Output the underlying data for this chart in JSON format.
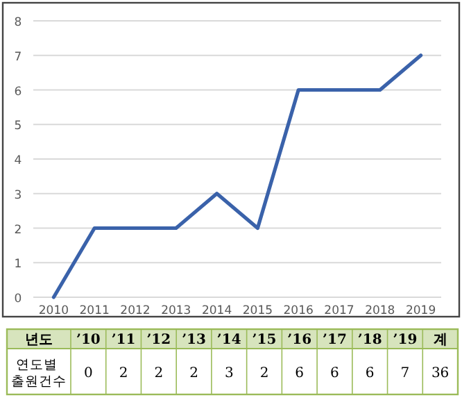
{
  "chart_data": {
    "type": "line",
    "categories": [
      "2010",
      "2011",
      "2012",
      "2013",
      "2014",
      "2015",
      "2016",
      "2017",
      "2018",
      "2019"
    ],
    "series": [
      {
        "color": "#3a62aa",
        "values": [
          0,
          2,
          2,
          2,
          3,
          2,
          6,
          6,
          6,
          7
        ]
      }
    ],
    "ylim": [
      0,
      8
    ],
    "yticks": [
      0,
      1,
      2,
      3,
      4,
      5,
      6,
      7,
      8
    ],
    "grid": "y",
    "marker": "none",
    "line_style": "solid",
    "annotations": [
      "년도",
      "’10",
      "’11",
      "’12",
      "’13",
      "’14",
      "’15",
      "’16",
      "’17",
      "’18",
      "’19",
      "계",
      "연도별 출원건수",
      "0",
      "2",
      "2",
      "2",
      "3",
      "2",
      "6",
      "6",
      "6",
      "7",
      "36"
    ]
  }
}
